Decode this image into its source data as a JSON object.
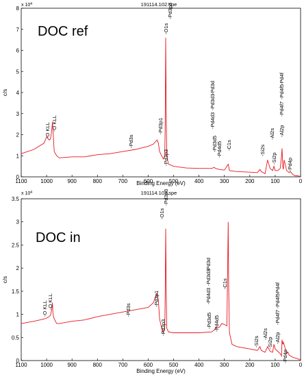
{
  "colors": {
    "spectrum": "#e8141d",
    "axis": "#000000"
  },
  "chart_data": [
    {
      "type": "line",
      "title": "191114.102.spe",
      "sample_label": "DOC ref",
      "xlabel": "Binding Energy (eV)",
      "ylabel": "c/s",
      "exponent_label": "x 10⁴",
      "exponent_base": "x 10",
      "exponent_power": "4",
      "x_reversed": true,
      "xlim": [
        0,
        1100
      ],
      "ylim": [
        0,
        8
      ],
      "y_multiplier": 10000,
      "x_ticks": [
        1100,
        1000,
        900,
        800,
        700,
        600,
        500,
        400,
        300,
        200,
        100,
        0
      ],
      "y_ticks": [
        0,
        1,
        2,
        3,
        4,
        5,
        6,
        7,
        8
      ],
      "series": [
        {
          "x": [
            1100,
            1050,
            1010,
            1000,
            990,
            985,
            980,
            977,
            975,
            970,
            960,
            950,
            900,
            850,
            800,
            750,
            700,
            650,
            600,
            580,
            565,
            560,
            555,
            545,
            540,
            535,
            533,
            531,
            529,
            527,
            520,
            500,
            450,
            400,
            350,
            340,
            335,
            320,
            300,
            290,
            285,
            283,
            280,
            270,
            250,
            200,
            170,
            160,
            155,
            140,
            130,
            120,
            110,
            105,
            100,
            90,
            80,
            75,
            73,
            70,
            68,
            65,
            60,
            55,
            50,
            45,
            40,
            30,
            20,
            10,
            0
          ],
          "y": [
            1.1,
            1.3,
            1.6,
            1.9,
            1.75,
            1.8,
            2.2,
            2.6,
            2.2,
            1.2,
            1.0,
            0.9,
            0.95,
            0.95,
            1.05,
            1.1,
            1.2,
            1.3,
            1.45,
            1.55,
            1.75,
            1.6,
            1.2,
            0.95,
            0.85,
            1.0,
            2.5,
            6.6,
            3.0,
            1.0,
            0.6,
            0.5,
            0.42,
            0.4,
            0.4,
            0.45,
            0.4,
            0.35,
            0.32,
            0.5,
            0.6,
            0.5,
            0.3,
            0.28,
            0.25,
            0.22,
            0.2,
            0.35,
            0.25,
            0.15,
            0.8,
            0.4,
            0.3,
            0.5,
            0.3,
            0.3,
            0.4,
            1.0,
            1.35,
            0.5,
            0.35,
            0.8,
            0.6,
            0.3,
            0.25,
            0.2,
            0.25,
            0.1,
            0.05,
            0.05,
            0.0
          ]
        }
      ],
      "annotations": [
        "-O KLL",
        "-O KLL",
        "-Pd3s",
        "-Pd3p1",
        "-O1s",
        "-Pd3p3",
        "-Pd3p3",
        "-Pd3d5",
        "-Pd4d5",
        "-Pd4d3",
        "-Pd3d3",
        "-Pd3d",
        "-C1s",
        "-Si2s",
        "-Si2p",
        "-Al2s",
        "-Al2p",
        "-Pd4f7",
        "-Pd4f5",
        "-Pd4f",
        "-Pd4p"
      ]
    },
    {
      "type": "line",
      "title": "191114.103.spe",
      "sample_label": "DOC in",
      "xlabel": "Binding Energy (eV)",
      "ylabel": "c/s",
      "exponent_label": "x 10⁴",
      "exponent_base": "x 10",
      "exponent_power": "4",
      "x_reversed": true,
      "xlim": [
        0,
        1100
      ],
      "ylim": [
        0,
        3.5
      ],
      "y_multiplier": 10000,
      "x_ticks": [
        1100,
        1000,
        900,
        800,
        700,
        600,
        500,
        400,
        300,
        200,
        100,
        0
      ],
      "y_ticks": [
        0,
        0.5,
        1,
        1.5,
        2,
        2.5,
        3,
        3.5
      ],
      "y_tick_labels": [
        "0",
        "0.5",
        "1",
        "1.5",
        "2",
        "2.5",
        "3",
        "3.5"
      ],
      "series": [
        {
          "x": [
            1100,
            1050,
            1010,
            1000,
            990,
            985,
            980,
            977,
            975,
            970,
            960,
            950,
            900,
            850,
            800,
            750,
            700,
            650,
            600,
            580,
            565,
            560,
            555,
            545,
            540,
            535,
            533,
            531,
            529,
            527,
            520,
            500,
            450,
            400,
            350,
            340,
            335,
            320,
            310,
            300,
            290,
            287,
            285,
            283,
            280,
            270,
            250,
            200,
            170,
            160,
            155,
            140,
            130,
            120,
            110,
            105,
            100,
            90,
            80,
            75,
            73,
            70,
            68,
            65,
            60,
            55,
            50,
            45,
            40,
            30,
            20,
            10,
            0
          ],
          "y": [
            0.8,
            0.85,
            0.9,
            0.92,
            0.95,
            0.98,
            1.1,
            1.25,
            1.0,
            0.9,
            0.8,
            0.8,
            0.85,
            0.88,
            0.95,
            1.0,
            1.05,
            1.1,
            1.15,
            1.25,
            1.45,
            1.3,
            0.9,
            0.65,
            0.6,
            0.7,
            1.4,
            2.85,
            1.5,
            0.7,
            0.62,
            0.6,
            0.6,
            0.6,
            0.62,
            0.66,
            0.7,
            0.72,
            0.8,
            0.78,
            0.75,
            2.0,
            3.0,
            1.6,
            0.6,
            0.35,
            0.3,
            0.25,
            0.22,
            0.3,
            0.22,
            0.18,
            0.3,
            0.2,
            0.18,
            0.35,
            0.25,
            0.2,
            0.15,
            0.1,
            0.45,
            0.35,
            0.4,
            0.35,
            0.25,
            0.15,
            0.18,
            0.12,
            0.1,
            0.07,
            0.05,
            0.04,
            0.0
          ]
        }
      ],
      "annotations": [
        "-O KLL",
        "-O KLL",
        "-Pd3s",
        "-Pd3p1",
        "-O1s",
        "-Pd3p3",
        "-Pd3p3",
        "-Pd3d5",
        "-Pd4d5",
        "-Pd4d3",
        "-Pd3d3",
        "-Pd3d",
        "-C1s",
        "-Si2s",
        "-Si2p",
        "-Al2s",
        "-Al2p",
        "-Pd4f7",
        "-Pd4f5",
        "-Pd4f",
        "-Pd4p"
      ]
    }
  ]
}
